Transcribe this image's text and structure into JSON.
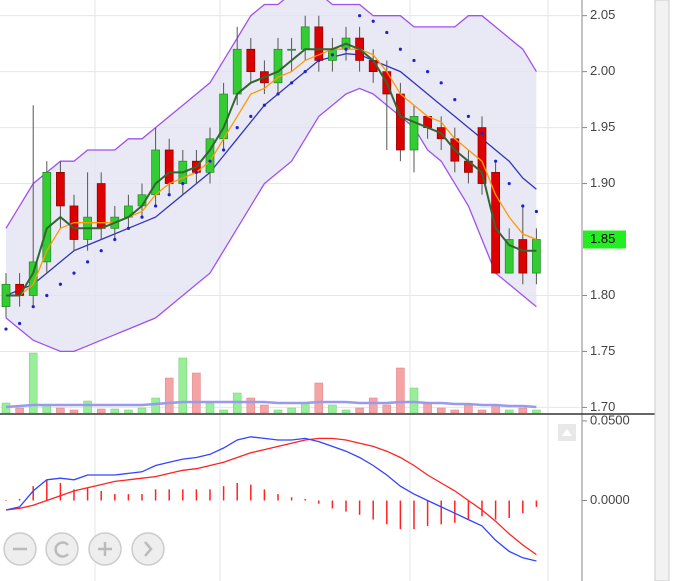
{
  "chart_data": {
    "type": "candlestick",
    "open": [
      1.79,
      1.81,
      1.8,
      1.83,
      1.91,
      1.88,
      1.85,
      1.9,
      1.86,
      1.87,
      1.88,
      1.89,
      1.93,
      1.9,
      1.92,
      1.91,
      1.94,
      1.98,
      2.02,
      2.0,
      1.99,
      2.02,
      2.02,
      2.04,
      2.01,
      2.02,
      2.03,
      2.01,
      2.0,
      1.98,
      1.93,
      1.96,
      1.95,
      1.94,
      1.92,
      1.95,
      1.91,
      1.82,
      1.85,
      1.82
    ],
    "high": [
      1.82,
      1.82,
      1.97,
      1.92,
      1.92,
      1.89,
      1.91,
      1.91,
      1.88,
      1.89,
      1.9,
      1.95,
      1.94,
      1.93,
      1.93,
      1.95,
      1.99,
      2.04,
      2.03,
      2.01,
      2.03,
      2.03,
      2.05,
      2.05,
      2.03,
      2.04,
      2.04,
      2.02,
      2.01,
      1.99,
      1.97,
      1.96,
      1.96,
      1.95,
      1.93,
      1.96,
      1.92,
      1.86,
      1.88,
      1.86
    ],
    "low": [
      1.78,
      1.79,
      1.79,
      1.82,
      1.86,
      1.84,
      1.84,
      1.85,
      1.85,
      1.86,
      1.87,
      1.88,
      1.89,
      1.89,
      1.9,
      1.9,
      1.93,
      1.97,
      1.99,
      1.98,
      1.98,
      2.0,
      2.01,
      2.0,
      2.0,
      2.01,
      2.0,
      1.99,
      1.93,
      1.92,
      1.91,
      1.94,
      1.93,
      1.91,
      1.9,
      1.89,
      1.82,
      1.82,
      1.81,
      1.81
    ],
    "close": [
      1.81,
      1.8,
      1.83,
      1.91,
      1.88,
      1.85,
      1.87,
      1.86,
      1.87,
      1.88,
      1.89,
      1.93,
      1.9,
      1.92,
      1.91,
      1.94,
      1.98,
      2.02,
      2.0,
      1.99,
      2.02,
      2.02,
      2.04,
      2.01,
      2.02,
      2.03,
      2.01,
      2.0,
      1.98,
      1.93,
      1.96,
      1.95,
      1.94,
      1.92,
      1.91,
      1.9,
      1.82,
      1.85,
      1.82,
      1.85
    ],
    "bollinger_upper": [
      1.86,
      1.88,
      1.9,
      1.91,
      1.92,
      1.92,
      1.93,
      1.93,
      1.93,
      1.94,
      1.94,
      1.95,
      1.96,
      1.97,
      1.98,
      1.99,
      2.01,
      2.03,
      2.05,
      2.06,
      2.06,
      2.07,
      2.07,
      2.07,
      2.06,
      2.06,
      2.06,
      2.05,
      2.05,
      2.05,
      2.04,
      2.04,
      2.04,
      2.04,
      2.05,
      2.05,
      2.04,
      2.03,
      2.02,
      2.0
    ],
    "bollinger_lower": [
      1.78,
      1.77,
      1.76,
      1.755,
      1.75,
      1.75,
      1.755,
      1.76,
      1.765,
      1.77,
      1.775,
      1.78,
      1.79,
      1.8,
      1.81,
      1.82,
      1.84,
      1.86,
      1.88,
      1.9,
      1.91,
      1.92,
      1.94,
      1.96,
      1.97,
      1.98,
      1.985,
      1.98,
      1.97,
      1.96,
      1.95,
      1.93,
      1.92,
      1.9,
      1.88,
      1.85,
      1.82,
      1.81,
      1.8,
      1.79
    ],
    "bollinger_mid": [
      1.8,
      1.805,
      1.81,
      1.82,
      1.83,
      1.84,
      1.845,
      1.85,
      1.855,
      1.86,
      1.865,
      1.87,
      1.88,
      1.89,
      1.9,
      1.91,
      1.925,
      1.94,
      1.955,
      1.97,
      1.98,
      1.99,
      2.0,
      2.01,
      2.013,
      2.016,
      2.015,
      2.01,
      2.005,
      2.0,
      1.99,
      1.98,
      1.97,
      1.96,
      1.95,
      1.94,
      1.93,
      1.92,
      1.905,
      1.895
    ],
    "ma_fast": [
      1.8,
      1.8,
      1.82,
      1.86,
      1.87,
      1.86,
      1.86,
      1.86,
      1.865,
      1.87,
      1.88,
      1.9,
      1.91,
      1.91,
      1.915,
      1.93,
      1.95,
      1.98,
      1.99,
      1.995,
      2.0,
      2.01,
      2.02,
      2.02,
      2.02,
      2.025,
      2.02,
      2.01,
      1.99,
      1.96,
      1.955,
      1.95,
      1.945,
      1.93,
      1.92,
      1.91,
      1.86,
      1.845,
      1.84,
      1.84
    ],
    "ma_slow": [
      1.8,
      1.8,
      1.81,
      1.84,
      1.86,
      1.865,
      1.865,
      1.865,
      1.865,
      1.87,
      1.875,
      1.89,
      1.9,
      1.905,
      1.91,
      1.92,
      1.94,
      1.96,
      1.98,
      1.985,
      1.995,
      2.0,
      2.01,
      2.015,
      2.02,
      2.02,
      2.02,
      2.015,
      2.0,
      1.98,
      1.97,
      1.96,
      1.955,
      1.94,
      1.93,
      1.92,
      1.89,
      1.87,
      1.855,
      1.85
    ],
    "sar": [
      1.77,
      1.775,
      1.79,
      1.8,
      1.81,
      1.82,
      1.83,
      1.84,
      1.85,
      1.86,
      1.87,
      1.88,
      1.89,
      1.9,
      1.91,
      1.92,
      1.93,
      1.95,
      1.96,
      1.97,
      1.98,
      1.99,
      2.0,
      2.01,
      2.015,
      2.02,
      2.05,
      2.045,
      2.035,
      2.02,
      2.01,
      2.0,
      1.99,
      1.975,
      1.96,
      1.945,
      1.92,
      1.9,
      1.88,
      1.875
    ],
    "volume": [
      10,
      5,
      60,
      8,
      5,
      3,
      12,
      4,
      4,
      3,
      5,
      15,
      35,
      55,
      40,
      10,
      3,
      20,
      15,
      8,
      3,
      5,
      10,
      30,
      8,
      3,
      5,
      15,
      8,
      45,
      25,
      10,
      5,
      3,
      8,
      3,
      8,
      3,
      5,
      3
    ],
    "volume_ma": [
      6,
      7,
      8,
      8,
      8,
      8,
      8,
      8,
      8,
      8,
      8,
      9,
      10,
      11,
      11,
      11,
      11,
      11,
      11,
      11,
      10,
      10,
      10,
      11,
      11,
      11,
      10,
      10,
      10,
      11,
      11,
      10,
      10,
      9,
      9,
      8,
      8,
      7,
      7,
      6
    ],
    "ylim": [
      1.695,
      2.064
    ],
    "yticks": [
      2.05,
      {
        "value": 2.0,
        "label": "2.00"
      },
      1.95,
      {
        "value": 1.9,
        "label": "1.90"
      },
      {
        "value": 1.8,
        "label": "1.80"
      },
      1.75,
      {
        "value": 1.7,
        "label": "1.70"
      }
    ],
    "last_price": 1.85,
    "macd": [
      -0.006,
      -0.004,
      0.006,
      0.013,
      0.014,
      0.013,
      0.016,
      0.016,
      0.016,
      0.017,
      0.018,
      0.022,
      0.024,
      0.026,
      0.027,
      0.029,
      0.033,
      0.038,
      0.04,
      0.039,
      0.038,
      0.038,
      0.039,
      0.037,
      0.034,
      0.031,
      0.027,
      0.022,
      0.016,
      0.009,
      0.004,
      0.0,
      -0.004,
      -0.008,
      -0.012,
      -0.016,
      -0.025,
      -0.032,
      -0.036,
      -0.038
    ],
    "macd_signal": [
      -0.006,
      -0.005,
      -0.003,
      0.0,
      0.003,
      0.006,
      0.008,
      0.01,
      0.012,
      0.013,
      0.014,
      0.015,
      0.017,
      0.019,
      0.02,
      0.022,
      0.024,
      0.027,
      0.03,
      0.032,
      0.034,
      0.036,
      0.038,
      0.039,
      0.039,
      0.038,
      0.036,
      0.034,
      0.031,
      0.027,
      0.022,
      0.016,
      0.011,
      0.006,
      0.0,
      -0.006,
      -0.013,
      -0.021,
      -0.028,
      -0.034
    ],
    "macd_hist": [
      0,
      0.001,
      0.009,
      0.013,
      0.011,
      0.007,
      0.008,
      0.006,
      0.004,
      0.004,
      0.004,
      0.007,
      0.007,
      0.007,
      0.007,
      0.007,
      0.009,
      0.011,
      0.01,
      0.007,
      0.004,
      0.002,
      0.001,
      -0.002,
      -0.005,
      -0.007,
      -0.009,
      -0.012,
      -0.015,
      -0.018,
      -0.018,
      -0.016,
      -0.015,
      -0.014,
      -0.012,
      -0.01,
      -0.012,
      -0.011,
      -0.008,
      -0.004
    ],
    "y2lim": [
      -0.0506,
      0.0531
    ],
    "y2ticks": [
      {
        "value": 0.05,
        "label": "0.0500"
      },
      {
        "value": 0,
        "label": "0.0000"
      }
    ],
    "colors": {
      "up": "#33cc33",
      "down": "#dd0000",
      "band": "#a050f0",
      "band_fill": "#e4e4f2",
      "mid": "#3333bb",
      "fast": "#336633",
      "slow": "#ff9900",
      "sar": "#2222cc",
      "macd": "#3344ff",
      "signal": "#ff2222"
    }
  }
}
